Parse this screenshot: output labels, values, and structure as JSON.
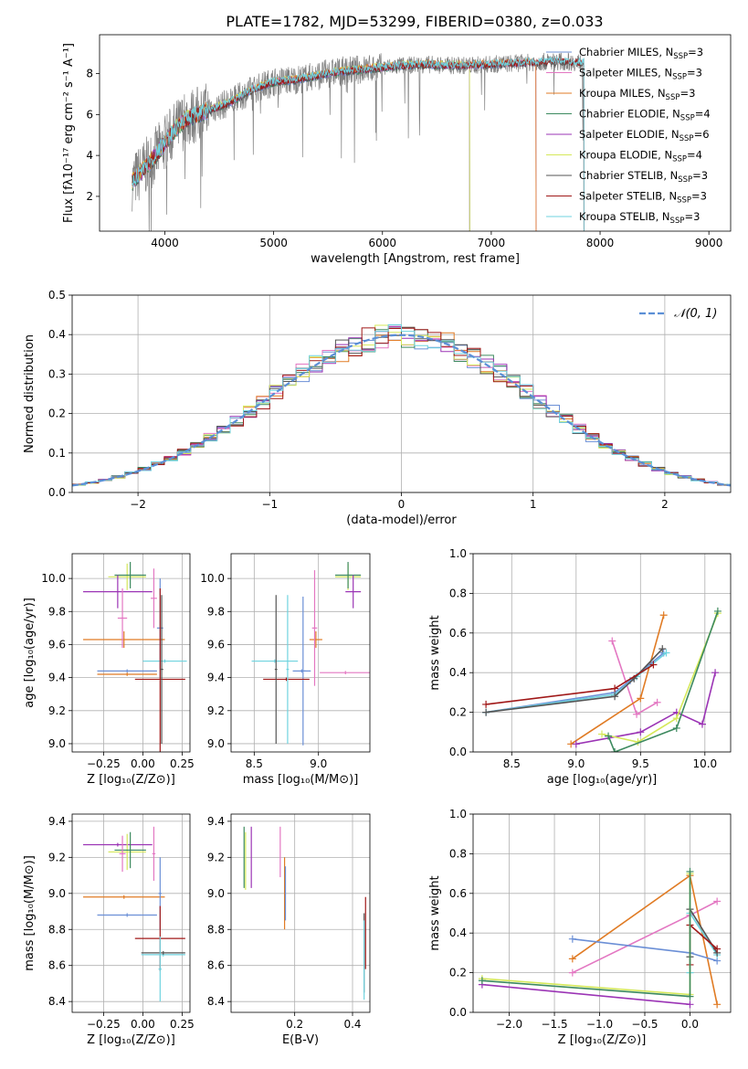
{
  "title": "PLATE=1782, MJD=53299, FIBERID=0380, z=0.033",
  "colors": {
    "Chabrier MILES": "#6b8fd6",
    "Salpeter MILES": "#e377c2",
    "Kroupa MILES": "#e07b24",
    "Chabrier ELODIE": "#3d8a5f",
    "Salpeter ELODIE": "#9b34b5",
    "Kroupa ELODIE": "#d5e85a",
    "Chabrier STELIB": "#555555",
    "Salpeter STELIB": "#a01818",
    "Kroupa STELIB": "#6fd3df",
    "data": "#808080",
    "gaussian": "#5b8fd6"
  },
  "chart_data": [
    {
      "id": "spectrum",
      "type": "line",
      "title": "PLATE=1782, MJD=53299, FIBERID=0380, z=0.033",
      "xlabel": "wavelength [Angstrom, rest frame]",
      "ylabel": "Flux [fλ10⁻¹⁷ erg cm⁻² s⁻¹ A⁻¹]",
      "xlim": [
        3400,
        9200
      ],
      "ylim": [
        0.3,
        9.9
      ],
      "xticks": [
        4000,
        5000,
        6000,
        7000,
        8000,
        9000
      ],
      "yticks": [
        2,
        4,
        6,
        8
      ],
      "legend_position": "upper right",
      "legend": [
        {
          "label": "Chabrier MILES, N",
          "sub": "SSP",
          "suffix": "=3"
        },
        {
          "label": "Salpeter MILES, N",
          "sub": "SSP",
          "suffix": "=3"
        },
        {
          "label": "Kroupa MILES, N",
          "sub": "SSP",
          "suffix": "=3"
        },
        {
          "label": "Chabrier ELODIE, N",
          "sub": "SSP",
          "suffix": "=4"
        },
        {
          "label": "Salpeter ELODIE, N",
          "sub": "SSP",
          "suffix": "=6"
        },
        {
          "label": "Kroupa ELODIE, N",
          "sub": "SSP",
          "suffix": "=4"
        },
        {
          "label": "Chabrier STELIB, N",
          "sub": "SSP",
          "suffix": "=3"
        },
        {
          "label": "Salpeter STELIB, N",
          "sub": "SSP",
          "suffix": "=3"
        },
        {
          "label": "Kroupa STELIB, N",
          "sub": "SSP",
          "suffix": "=3"
        }
      ],
      "model_curve": {
        "x": [
          3700,
          3800,
          3900,
          4000,
          4100,
          4200,
          4400,
          4600,
          4800,
          5000,
          5200,
          5400,
          5600,
          5800,
          6000,
          6200,
          6400,
          6600,
          6800,
          7000,
          7200,
          7400,
          7600,
          7800
        ],
        "y": [
          2.7,
          3.3,
          3.9,
          4.6,
          5.3,
          5.8,
          6.2,
          6.6,
          7.2,
          7.6,
          7.7,
          7.9,
          8.1,
          8.2,
          8.3,
          8.4,
          8.45,
          8.4,
          8.4,
          8.45,
          8.5,
          8.55,
          8.6,
          8.55
        ]
      },
      "model_ends": {
        "Chabrier ELODIE": 6800,
        "Salpeter ELODIE": 6800,
        "Kroupa ELODIE": 6800,
        "Chabrier MILES": 7410,
        "Salpeter MILES": 7410,
        "Kroupa MILES": 7410,
        "Chabrier STELIB": 7850,
        "Salpeter STELIB": 7850,
        "Kroupa STELIB": 7850
      }
    },
    {
      "id": "residuals",
      "type": "line",
      "xlabel": "(data-model)/error",
      "ylabel": "Normed distribution",
      "xlim": [
        -2.5,
        2.5
      ],
      "ylim": [
        0,
        0.5
      ],
      "xticks": [
        -2,
        -1,
        0,
        1,
        2
      ],
      "yticks": [
        0.0,
        0.1,
        0.2,
        0.3,
        0.4,
        0.5
      ],
      "legend": [
        "𝒩(0, 1)"
      ],
      "legend_position": "upper right",
      "grid": true
    },
    {
      "id": "age-vs-Z",
      "type": "scatter",
      "xlabel": "Z [log₁₀(Z/Z⊙)]",
      "ylabel": "age  [log₁₀(age/yr)]",
      "xlim": [
        -0.45,
        0.3
      ],
      "ylim": [
        8.95,
        10.15
      ],
      "xticks": [
        -0.25,
        0.0,
        0.25
      ],
      "yticks": [
        9.0,
        9.2,
        9.4,
        9.6,
        9.8,
        10.0
      ],
      "grid": true,
      "points": [
        {
          "model": "Kroupa ELODIE",
          "x": -0.1,
          "xerr": 0.12,
          "y": 10.01,
          "yerr": 0.08
        },
        {
          "model": "Chabrier ELODIE",
          "x": -0.08,
          "xerr": 0.1,
          "y": 10.02,
          "yerr": 0.08
        },
        {
          "model": "Salpeter ELODIE",
          "x": -0.16,
          "xerr": 0.22,
          "y": 9.92,
          "yerr": 0.1
        },
        {
          "model": "Salpeter MILES",
          "x": 0.07,
          "xerr": 0.02,
          "y": 9.88,
          "yerr": 0.18
        },
        {
          "model": "Kroupa MILES",
          "x": -0.12,
          "xerr": 0.26,
          "y": 9.63,
          "yerr": 0.05
        },
        {
          "model": "Chabrier MILES",
          "x": 0.11,
          "xerr": 0.02,
          "y": 9.7,
          "yerr": 0.3
        },
        {
          "model": "Salpeter MILES",
          "x": -0.13,
          "xerr": 0.03,
          "y": 9.76,
          "yerr": 0.18
        },
        {
          "model": "Kroupa STELIB",
          "x": 0.14,
          "xerr": 0.14,
          "y": 9.5,
          "yerr": 0.01
        },
        {
          "model": "Chabrier MILES",
          "x": -0.1,
          "xerr": 0.19,
          "y": 9.44,
          "yerr": 0.01
        },
        {
          "model": "Kroupa MILES",
          "x": -0.1,
          "xerr": 0.19,
          "y": 9.42,
          "yerr": 0.01
        },
        {
          "model": "Salpeter STELIB",
          "x": 0.11,
          "xerr": 0.16,
          "y": 9.39,
          "yerr": 0.55
        },
        {
          "model": "Chabrier STELIB",
          "x": 0.12,
          "xerr": 0.01,
          "y": 9.45,
          "yerr": 0.45
        }
      ]
    },
    {
      "id": "age-vs-mass",
      "type": "scatter",
      "xlabel": "mass [log₁₀(M/M⊙)]",
      "xlim": [
        8.32,
        9.4
      ],
      "ylim": [
        8.95,
        10.15
      ],
      "xticks": [
        8.5,
        9.0
      ],
      "yticks": [
        9.0,
        9.2,
        9.4,
        9.6,
        9.8,
        10.0
      ],
      "grid": true,
      "points": [
        {
          "model": "Kroupa ELODIE",
          "x": 9.23,
          "xerr": 0.1,
          "y": 10.01,
          "yerr": 0.08
        },
        {
          "model": "Chabrier ELODIE",
          "x": 9.23,
          "xerr": 0.1,
          "y": 10.02,
          "yerr": 0.08
        },
        {
          "model": "Salpeter ELODIE",
          "x": 9.27,
          "xerr": 0.06,
          "y": 9.92,
          "yerr": 0.1
        },
        {
          "model": "Salpeter MILES",
          "x": 9.21,
          "xerr": 0.2,
          "y": 9.43,
          "yerr": 0.01
        },
        {
          "model": "Kroupa MILES",
          "x": 8.98,
          "xerr": 0.05,
          "y": 9.63,
          "yerr": 0.05
        },
        {
          "model": "Salpeter MILES",
          "x": 8.97,
          "xerr": 0.02,
          "y": 9.7,
          "yerr": 0.35
        },
        {
          "model": "Chabrier MILES",
          "x": 8.88,
          "xerr": 0.02,
          "y": 9.44,
          "yerr": 0.45
        },
        {
          "model": "Chabrier MILES",
          "x": 8.87,
          "xerr": 0.07,
          "y": 9.44,
          "yerr": 0.01
        },
        {
          "model": "Kroupa STELIB",
          "x": 8.66,
          "xerr": 0.18,
          "y": 9.5,
          "yerr": 0.01
        },
        {
          "model": "Salpeter STELIB",
          "x": 8.75,
          "xerr": 0.18,
          "y": 9.39,
          "yerr": 0.01
        },
        {
          "model": "Chabrier STELIB",
          "x": 8.67,
          "xerr": 0.01,
          "y": 9.45,
          "yerr": 0.45
        },
        {
          "model": "Kroupa STELIB",
          "x": 8.76,
          "xerr": 0.01,
          "y": 9.45,
          "yerr": 0.45
        }
      ]
    },
    {
      "id": "weight-vs-age",
      "type": "line",
      "xlabel": "age  [log₁₀(age/yr)]",
      "ylabel": "mass weight",
      "xlim": [
        8.2,
        10.2
      ],
      "ylim": [
        0,
        1.0
      ],
      "xticks": [
        8.5,
        9.0,
        9.5,
        10.0
      ],
      "yticks": [
        0.0,
        0.2,
        0.4,
        0.6,
        0.8,
        1.0
      ],
      "grid": true,
      "series": [
        {
          "model": "Salpeter MILES",
          "x": [
            9.28,
            9.47,
            9.63
          ],
          "y": [
            0.56,
            0.19,
            0.25
          ]
        },
        {
          "model": "Kroupa MILES",
          "x": [
            8.96,
            9.5,
            9.68
          ],
          "y": [
            0.04,
            0.27,
            0.69
          ]
        },
        {
          "model": "Chabrier MILES",
          "x": [
            8.3,
            9.3,
            9.42,
            9.68
          ],
          "y": [
            0.2,
            0.3,
            0.36,
            0.5
          ]
        },
        {
          "model": "Kroupa STELIB",
          "x": [
            8.3,
            9.3,
            9.47,
            9.7
          ],
          "y": [
            0.2,
            0.29,
            0.38,
            0.5
          ]
        },
        {
          "model": "Chabrier STELIB",
          "x": [
            8.3,
            9.3,
            9.45,
            9.67
          ],
          "y": [
            0.2,
            0.28,
            0.37,
            0.52
          ]
        },
        {
          "model": "Salpeter STELIB",
          "x": [
            8.3,
            9.3,
            9.6
          ],
          "y": [
            0.24,
            0.32,
            0.44
          ]
        },
        {
          "model": "Salpeter ELODIE",
          "x": [
            9.0,
            9.5,
            9.78,
            9.98,
            10.08
          ],
          "y": [
            0.04,
            0.1,
            0.2,
            0.14,
            0.4
          ]
        },
        {
          "model": "Kroupa ELODIE",
          "x": [
            9.2,
            9.48,
            9.78,
            10.1
          ],
          "y": [
            0.09,
            0.05,
            0.17,
            0.7
          ]
        },
        {
          "model": "Chabrier ELODIE",
          "x": [
            9.25,
            9.3,
            9.78,
            10.1
          ],
          "y": [
            0.08,
            0.0,
            0.12,
            0.71
          ]
        }
      ]
    },
    {
      "id": "mass-vs-Z",
      "type": "scatter",
      "xlabel": "Z [log₁₀(Z/Z⊙)]",
      "ylabel": "mass [log₁₀(M/M⊙)]",
      "xlim": [
        -0.45,
        0.3
      ],
      "ylim": [
        8.34,
        9.44
      ],
      "xticks": [
        -0.25,
        0.0,
        0.25
      ],
      "yticks": [
        8.4,
        8.6,
        8.8,
        9.0,
        9.2,
        9.4
      ],
      "grid": true,
      "points": [
        {
          "model": "Salpeter ELODIE",
          "x": -0.16,
          "xerr": 0.22,
          "y": 9.27,
          "yerr": 0.01
        },
        {
          "model": "Kroupa ELODIE",
          "x": -0.1,
          "xerr": 0.12,
          "y": 9.23,
          "yerr": 0.1
        },
        {
          "model": "Chabrier ELODIE",
          "x": -0.08,
          "xerr": 0.1,
          "y": 9.24,
          "yerr": 0.1
        },
        {
          "model": "Salpeter MILES",
          "x": -0.13,
          "xerr": 0.02,
          "y": 9.22,
          "yerr": 0.1
        },
        {
          "model": "Salpeter MILES",
          "x": 0.07,
          "xerr": 0.01,
          "y": 9.22,
          "yerr": 0.15
        },
        {
          "model": "Kroupa MILES",
          "x": -0.12,
          "xerr": 0.26,
          "y": 8.98,
          "yerr": 0.01
        },
        {
          "model": "Chabrier MILES",
          "x": -0.1,
          "xerr": 0.19,
          "y": 8.88,
          "yerr": 0.01
        },
        {
          "model": "Chabrier MILES",
          "x": 0.11,
          "xerr": 0.01,
          "y": 9.0,
          "yerr": 0.2
        },
        {
          "model": "Salpeter STELIB",
          "x": 0.11,
          "xerr": 0.16,
          "y": 8.75,
          "yerr": 0.18
        },
        {
          "model": "Kroupa STELIB",
          "x": 0.13,
          "xerr": 0.14,
          "y": 8.66,
          "yerr": 0.01
        },
        {
          "model": "Chabrier STELIB",
          "x": 0.13,
          "xerr": 0.14,
          "y": 8.67,
          "yerr": 0.01
        },
        {
          "model": "Kroupa STELIB",
          "x": 0.11,
          "xerr": 0.01,
          "y": 8.58,
          "yerr": 0.18
        }
      ]
    },
    {
      "id": "mass-vs-ebv",
      "type": "scatter",
      "xlabel": "E(B-V)",
      "xlim": [
        -0.02,
        0.46
      ],
      "ylim": [
        8.34,
        9.44
      ],
      "xticks": [
        0.2,
        0.4
      ],
      "yticks": [
        8.4,
        8.6,
        8.8,
        9.0,
        9.2,
        9.4
      ],
      "grid": true,
      "points": [
        {
          "model": "Chabrier ELODIE",
          "x": 0.025,
          "xerr": 0.0,
          "y": 9.2,
          "yerr": 0.17
        },
        {
          "model": "Kroupa ELODIE",
          "x": 0.03,
          "xerr": 0.0,
          "y": 9.18,
          "yerr": 0.16
        },
        {
          "model": "Salpeter ELODIE",
          "x": 0.05,
          "xerr": 0.0,
          "y": 9.2,
          "yerr": 0.17
        },
        {
          "model": "Salpeter MILES",
          "x": 0.15,
          "xerr": 0.0,
          "y": 9.23,
          "yerr": 0.14
        },
        {
          "model": "Kroupa MILES",
          "x": 0.165,
          "xerr": 0.0,
          "y": 9.0,
          "yerr": 0.2
        },
        {
          "model": "Chabrier MILES",
          "x": 0.168,
          "xerr": 0.0,
          "y": 9.0,
          "yerr": 0.15
        },
        {
          "model": "Salpeter STELIB",
          "x": 0.445,
          "xerr": 0.0,
          "y": 8.78,
          "yerr": 0.2
        },
        {
          "model": "Chabrier STELIB",
          "x": 0.44,
          "xerr": 0.0,
          "y": 8.67,
          "yerr": 0.22
        },
        {
          "model": "Kroupa STELIB",
          "x": 0.44,
          "xerr": 0.0,
          "y": 8.63,
          "yerr": 0.22
        }
      ]
    },
    {
      "id": "weight-vs-Z",
      "type": "line",
      "xlabel": "Z [log₁₀(Z/Z⊙)]",
      "ylabel": "mass weight",
      "xlim": [
        -2.4,
        0.45
      ],
      "ylim": [
        0,
        1.0
      ],
      "xticks": [
        -2.0,
        -1.5,
        -1.0,
        -0.5,
        0.0
      ],
      "yticks": [
        0.0,
        0.2,
        0.4,
        0.6,
        0.8,
        1.0
      ],
      "grid": true,
      "series": [
        {
          "model": "Salpeter MILES",
          "x": [
            -1.3,
            0.0,
            0.3
          ],
          "y": [
            0.2,
            0.49,
            0.56
          ]
        },
        {
          "model": "Kroupa MILES",
          "x": [
            -1.3,
            0.0,
            0.3
          ],
          "y": [
            0.27,
            0.69,
            0.04
          ]
        },
        {
          "model": "Chabrier MILES",
          "x": [
            -1.3,
            0.0,
            0.3
          ],
          "y": [
            0.37,
            0.3,
            0.26
          ]
        },
        {
          "model": "Kroupa STELIB",
          "x": [
            0.0,
            0.0,
            0.3
          ],
          "y": [
            0.2,
            0.5,
            0.29
          ]
        },
        {
          "model": "Chabrier STELIB",
          "x": [
            0.0,
            0.0,
            0.3
          ],
          "y": [
            0.28,
            0.52,
            0.3
          ]
        },
        {
          "model": "Salpeter STELIB",
          "x": [
            0.0,
            0.0,
            0.3
          ],
          "y": [
            0.24,
            0.44,
            0.32
          ]
        },
        {
          "model": "Salpeter ELODIE",
          "x": [
            -2.3,
            0.0
          ],
          "y": [
            0.14,
            0.04
          ]
        },
        {
          "model": "Kroupa ELODIE",
          "x": [
            -2.3,
            0.0,
            0.0
          ],
          "y": [
            0.17,
            0.09,
            0.7
          ]
        },
        {
          "model": "Chabrier ELODIE",
          "x": [
            -2.3,
            0.0,
            0.0
          ],
          "y": [
            0.16,
            0.08,
            0.71
          ]
        }
      ]
    }
  ]
}
